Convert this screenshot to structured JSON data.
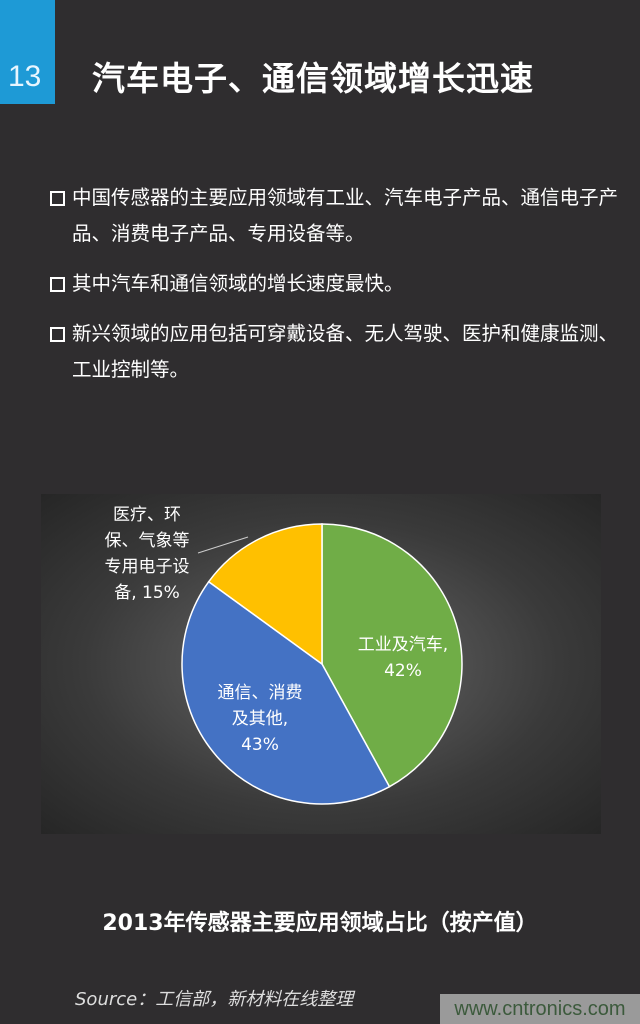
{
  "slide": {
    "number": "13",
    "title": "汽车电子、通信领域增长迅速"
  },
  "bullets": [
    "中国传感器的主要应用领域有工业、汽车电子产品、通信电子产品、消费电子产品、专用设备等。",
    "其中汽车和通信领域的增长速度最快。",
    "新兴领域的应用包括可穿戴设备、无人驾驶、医护和健康监测、工业控制等。"
  ],
  "chart_data": {
    "type": "pie",
    "title": "2013年传感器主要应用领域占比（按产值）",
    "slices": [
      {
        "label": "工业及汽车,",
        "value": 42,
        "value_label": "42%",
        "color": "#70ad47"
      },
      {
        "label": "通信、消费及其他,",
        "value": 43,
        "value_label": "43%",
        "color": "#4472c4"
      },
      {
        "label": "医疗、环保、气象等专用电子设备,",
        "value": 15,
        "value_label": "15%",
        "color": "#ffc000"
      }
    ],
    "label_lines": {
      "s0": [
        "工业及汽车,",
        "42%"
      ],
      "s1": [
        "通信、消费",
        "及其他,",
        "43%"
      ],
      "s2": [
        "医疗、环",
        "保、气象等",
        "专用电子设",
        "备, 15%"
      ]
    }
  },
  "footer": {
    "source": "Source：工信部，新材料在线整理",
    "watermark": "www.cntronics.com"
  }
}
